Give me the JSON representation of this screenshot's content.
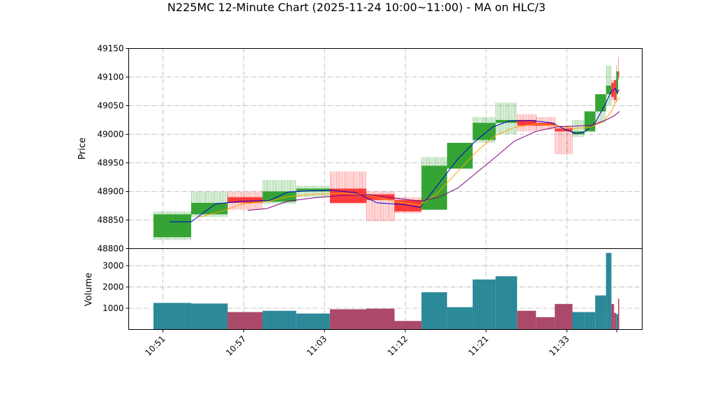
{
  "chart_data": {
    "type": "candlestick",
    "title": "N225MC 12-Minute Chart (2025-11-24 10:00~11:00) - MA on HLC/3",
    "price_panel": {
      "ylabel": "Price",
      "ylim": [
        48800,
        49150
      ],
      "yticks": [
        48800,
        48850,
        48900,
        48950,
        49000,
        49050,
        49100,
        49150
      ]
    },
    "volume_panel": {
      "ylabel": "Volume",
      "ylim": [
        0,
        3800
      ],
      "yticks": [
        1000,
        2000,
        3000
      ]
    },
    "xlim": [
      -0.7,
      17.3
    ],
    "xticks": [
      {
        "pos": 0.35,
        "label": "10:51"
      },
      {
        "pos": 3.35,
        "label": "10:57"
      },
      {
        "pos": 6.35,
        "label": "11:03"
      },
      {
        "pos": 9.35,
        "label": "11:12"
      },
      {
        "pos": 12.35,
        "label": "11:21"
      },
      {
        "pos": 15.35,
        "label": "11:33"
      },
      {
        "pos": 17.2,
        "label": ""
      }
    ],
    "colors": {
      "up": "#2ca02c",
      "down": "#ff3333",
      "ma_short": "#0000cc",
      "ma_mid": "#ffa500",
      "ma_long": "#800080",
      "vol_up": "#2f8f8f",
      "vol_down": "#a64d79"
    },
    "candles": [
      {
        "x0": 0.0,
        "x1": 1.4,
        "open": 48820,
        "close": 48860,
        "high": 48865,
        "low": 48815,
        "volume": 1250
      },
      {
        "x0": 1.4,
        "x1": 2.75,
        "open": 48860,
        "close": 48880,
        "high": 48900,
        "low": 48855,
        "volume": 1220
      },
      {
        "x0": 2.75,
        "x1": 4.05,
        "open": 48890,
        "close": 48880,
        "high": 48900,
        "low": 48868,
        "volume": 820
      },
      {
        "x0": 4.05,
        "x1": 5.3,
        "open": 48882,
        "close": 48900,
        "high": 48920,
        "low": 48878,
        "volume": 880
      },
      {
        "x0": 5.3,
        "x1": 6.55,
        "open": 48900,
        "close": 48905,
        "high": 48910,
        "low": 48890,
        "volume": 750
      },
      {
        "x0": 6.55,
        "x1": 7.9,
        "open": 48905,
        "close": 48880,
        "high": 48935,
        "low": 48878,
        "volume": 950
      },
      {
        "x0": 7.9,
        "x1": 8.95,
        "open": 48895,
        "close": 48885,
        "high": 48900,
        "low": 48848,
        "volume": 980
      },
      {
        "x0": 8.95,
        "x1": 9.95,
        "open": 48885,
        "close": 48865,
        "high": 48890,
        "low": 48862,
        "volume": 400
      },
      {
        "x0": 9.95,
        "x1": 10.9,
        "open": 48868,
        "close": 48945,
        "high": 48960,
        "low": 48868,
        "volume": 1750
      },
      {
        "x0": 10.9,
        "x1": 11.85,
        "open": 48940,
        "close": 48985,
        "high": 48985,
        "low": 48940,
        "volume": 1050
      },
      {
        "x0": 11.85,
        "x1": 12.7,
        "open": 48990,
        "close": 49020,
        "high": 49030,
        "low": 48985,
        "volume": 2350
      },
      {
        "x0": 12.7,
        "x1": 13.5,
        "open": 49020,
        "close": 49025,
        "high": 49055,
        "low": 49000,
        "volume": 2500
      },
      {
        "x0": 13.5,
        "x1": 14.2,
        "open": 49025,
        "close": 49015,
        "high": 49035,
        "low": 49005,
        "volume": 880
      },
      {
        "x0": 14.2,
        "x1": 14.9,
        "open": 49020,
        "close": 49015,
        "high": 49030,
        "low": 49008,
        "volume": 580
      },
      {
        "x0": 14.9,
        "x1": 15.55,
        "open": 49010,
        "close": 49005,
        "high": 49015,
        "low": 48965,
        "volume": 1200
      },
      {
        "x0": 15.55,
        "x1": 16.0,
        "open": 49000,
        "close": 49005,
        "high": 49025,
        "low": 48995,
        "volume": 820
      },
      {
        "x0": 16.0,
        "x1": 16.4,
        "open": 49005,
        "close": 49040,
        "high": 49040,
        "low": 49005,
        "volume": 820
      },
      {
        "x0": 16.4,
        "x1": 16.8,
        "open": 49040,
        "close": 49070,
        "high": 49070,
        "low": 49020,
        "volume": 1600
      },
      {
        "x0": 16.8,
        "x1": 17.0,
        "open": 49070,
        "close": 49085,
        "high": 49120,
        "low": 49050,
        "volume": 3600
      },
      {
        "x0": 17.0,
        "x1": 17.1,
        "open": 49090,
        "close": 49065,
        "high": 49095,
        "low": 49060,
        "volume": 1200
      },
      {
        "x0": 17.1,
        "x1": 17.18,
        "open": 49095,
        "close": 49060,
        "high": 49095,
        "low": 49055,
        "volume": 780
      },
      {
        "x0": 17.18,
        "x1": 17.25,
        "open": 49070,
        "close": 49110,
        "high": 49120,
        "low": 49060,
        "volume": 720
      },
      {
        "x0": 17.25,
        "x1": 17.29,
        "open": 49110,
        "close": 49100,
        "high": 49135,
        "low": 49095,
        "volume": 1450
      }
    ],
    "ma_series": [
      {
        "color_key": "ma_short",
        "points": [
          [
            0.6,
            48847
          ],
          [
            1.4,
            48847
          ],
          [
            2.3,
            48878
          ],
          [
            3.3,
            48883
          ],
          [
            4.3,
            48884
          ],
          [
            5.0,
            48899
          ],
          [
            5.8,
            48901
          ],
          [
            6.6,
            48902
          ],
          [
            7.5,
            48898
          ],
          [
            8.3,
            48880
          ],
          [
            9.3,
            48877
          ],
          [
            9.9,
            48872
          ],
          [
            10.5,
            48908
          ],
          [
            11.3,
            48957
          ],
          [
            12.0,
            48990
          ],
          [
            12.6,
            49013
          ],
          [
            13.2,
            49023
          ],
          [
            14.0,
            49024
          ],
          [
            14.8,
            49020
          ],
          [
            15.3,
            49008
          ],
          [
            15.7,
            49001
          ],
          [
            16.0,
            49004
          ],
          [
            16.4,
            49020
          ],
          [
            16.8,
            49055
          ],
          [
            17.0,
            49075
          ],
          [
            17.15,
            49080
          ],
          [
            17.22,
            49073
          ],
          [
            17.3,
            49078
          ]
        ]
      },
      {
        "color_key": "ma_mid",
        "points": [
          [
            1.7,
            48855
          ],
          [
            2.5,
            48865
          ],
          [
            3.3,
            48878
          ],
          [
            4.3,
            48883
          ],
          [
            5.0,
            48891
          ],
          [
            6.0,
            48895
          ],
          [
            7.0,
            48897
          ],
          [
            8.0,
            48893
          ],
          [
            9.0,
            48882
          ],
          [
            9.9,
            48876
          ],
          [
            10.5,
            48895
          ],
          [
            11.3,
            48935
          ],
          [
            12.0,
            48970
          ],
          [
            12.7,
            48998
          ],
          [
            13.4,
            49012
          ],
          [
            14.2,
            49018
          ],
          [
            15.0,
            49015
          ],
          [
            15.6,
            49010
          ],
          [
            16.2,
            49012
          ],
          [
            16.7,
            49022
          ],
          [
            17.0,
            49040
          ],
          [
            17.15,
            49055
          ],
          [
            17.3,
            49065
          ]
        ]
      },
      {
        "color_key": "ma_long",
        "points": [
          [
            3.5,
            48867
          ],
          [
            4.2,
            48870
          ],
          [
            5.0,
            48883
          ],
          [
            6.0,
            48889
          ],
          [
            7.0,
            48893
          ],
          [
            8.0,
            48894
          ],
          [
            9.0,
            48888
          ],
          [
            9.9,
            48883
          ],
          [
            10.6,
            48890
          ],
          [
            11.3,
            48906
          ],
          [
            12.0,
            48933
          ],
          [
            12.7,
            48960
          ],
          [
            13.4,
            48988
          ],
          [
            14.2,
            49005
          ],
          [
            15.0,
            49013
          ],
          [
            15.6,
            49014
          ],
          [
            16.3,
            49016
          ],
          [
            16.8,
            49025
          ],
          [
            17.1,
            49032
          ],
          [
            17.3,
            49040
          ]
        ]
      }
    ]
  }
}
